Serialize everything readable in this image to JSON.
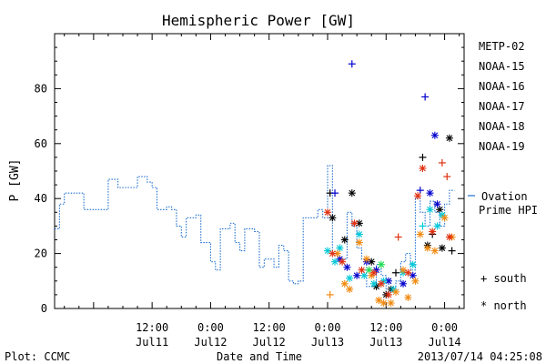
{
  "chart_data": {
    "type": "scatter",
    "title": "Hemispheric Power [GW]",
    "ylabel": "P [GW]",
    "xlabel": "Date and Time",
    "ylim": [
      0,
      100
    ],
    "xlim": [
      "2013-07-10 16:00",
      "2013-07-14 04:00"
    ],
    "yticks": [
      0,
      20,
      40,
      60,
      80
    ],
    "xticks": [
      {
        "time": "2013-07-11 12:00",
        "line1": "12:00",
        "line2": "Jul11"
      },
      {
        "time": "2013-07-12 00:00",
        "line1": "0:00",
        "line2": "Jul12"
      },
      {
        "time": "2013-07-12 12:00",
        "line1": "12:00",
        "line2": "Jul12"
      },
      {
        "time": "2013-07-13 00:00",
        "line1": "0:00",
        "line2": "Jul13"
      },
      {
        "time": "2013-07-13 12:00",
        "line1": "12:00",
        "line2": "Jul13"
      },
      {
        "time": "2013-07-14 00:00",
        "line1": "0:00",
        "line2": "Jul14"
      }
    ],
    "ovation": {
      "label_line1": "Ovation",
      "label_line2": "Prime HPI",
      "color": "#1f6fd0",
      "points": [
        [
          "2013-07-10 16:00",
          29
        ],
        [
          "2013-07-10 17:00",
          38
        ],
        [
          "2013-07-10 18:00",
          42
        ],
        [
          "2013-07-10 21:00",
          42
        ],
        [
          "2013-07-10 22:00",
          36
        ],
        [
          "2013-07-11 02:00",
          36
        ],
        [
          "2013-07-11 03:00",
          47
        ],
        [
          "2013-07-11 05:00",
          44
        ],
        [
          "2013-07-11 08:00",
          44
        ],
        [
          "2013-07-11 09:00",
          48
        ],
        [
          "2013-07-11 11:00",
          46
        ],
        [
          "2013-07-11 12:00",
          44
        ],
        [
          "2013-07-11 13:00",
          36
        ],
        [
          "2013-07-11 15:00",
          37
        ],
        [
          "2013-07-11 16:00",
          36
        ],
        [
          "2013-07-11 17:00",
          30
        ],
        [
          "2013-07-11 18:00",
          26
        ],
        [
          "2013-07-11 19:00",
          33
        ],
        [
          "2013-07-11 21:00",
          34
        ],
        [
          "2013-07-11 22:00",
          24
        ],
        [
          "2013-07-12 00:00",
          17
        ],
        [
          "2013-07-12 01:00",
          14
        ],
        [
          "2013-07-12 02:00",
          29
        ],
        [
          "2013-07-12 04:00",
          31
        ],
        [
          "2013-07-12 05:00",
          24
        ],
        [
          "2013-07-12 06:00",
          21
        ],
        [
          "2013-07-12 07:00",
          29
        ],
        [
          "2013-07-12 09:00",
          28
        ],
        [
          "2013-07-12 10:00",
          15
        ],
        [
          "2013-07-12 11:00",
          18
        ],
        [
          "2013-07-12 12:00",
          18
        ],
        [
          "2013-07-12 13:00",
          15
        ],
        [
          "2013-07-12 14:00",
          23
        ],
        [
          "2013-07-12 15:00",
          21
        ],
        [
          "2013-07-12 16:00",
          10
        ],
        [
          "2013-07-12 17:00",
          9
        ],
        [
          "2013-07-12 18:00",
          10
        ],
        [
          "2013-07-12 19:00",
          33
        ],
        [
          "2013-07-12 22:00",
          36
        ],
        [
          "2013-07-12 23:00",
          33
        ],
        [
          "2013-07-13 00:00",
          52
        ],
        [
          "2013-07-13 01:00",
          20
        ],
        [
          "2013-07-13 02:00",
          18
        ],
        [
          "2013-07-13 04:00",
          35
        ],
        [
          "2013-07-13 05:00",
          30
        ],
        [
          "2013-07-13 06:00",
          22
        ],
        [
          "2013-07-13 07:00",
          18
        ],
        [
          "2013-07-13 08:00",
          8
        ],
        [
          "2013-07-13 10:00",
          16
        ],
        [
          "2013-07-13 11:00",
          12
        ],
        [
          "2013-07-13 12:00",
          6
        ],
        [
          "2013-07-13 13:00",
          7
        ],
        [
          "2013-07-13 14:00",
          10
        ],
        [
          "2013-07-13 15:00",
          17
        ],
        [
          "2013-07-13 16:00",
          20
        ],
        [
          "2013-07-13 17:00",
          14
        ],
        [
          "2013-07-13 18:00",
          40
        ],
        [
          "2013-07-13 19:00",
          35
        ],
        [
          "2013-07-13 20:00",
          30
        ],
        [
          "2013-07-13 21:00",
          39
        ],
        [
          "2013-07-13 22:00",
          35
        ],
        [
          "2013-07-13 23:00",
          30
        ],
        [
          "2013-07-14 00:00",
          38
        ],
        [
          "2013-07-14 01:00",
          43
        ],
        [
          "2013-07-14 02:00",
          43
        ]
      ]
    },
    "series": [
      {
        "name": "METP-02",
        "color": "#000000",
        "points": [
          [
            "2013-07-13 00:30",
            42,
            "south"
          ],
          [
            "2013-07-13 01:00",
            33,
            "north"
          ],
          [
            "2013-07-13 03:30",
            25,
            "north"
          ],
          [
            "2013-07-13 05:00",
            42,
            "north"
          ],
          [
            "2013-07-13 06:30",
            31,
            "north"
          ],
          [
            "2013-07-13 09:00",
            17,
            "north"
          ],
          [
            "2013-07-13 10:00",
            8,
            "north"
          ],
          [
            "2013-07-13 12:00",
            5,
            "north"
          ],
          [
            "2013-07-13 13:00",
            7,
            "north"
          ],
          [
            "2013-07-13 14:00",
            13,
            "south"
          ],
          [
            "2013-07-13 19:30",
            55,
            "south"
          ],
          [
            "2013-07-13 20:30",
            23,
            "north"
          ],
          [
            "2013-07-13 21:30",
            27,
            "south"
          ],
          [
            "2013-07-13 23:00",
            36,
            "north"
          ],
          [
            "2013-07-13 23:30",
            22,
            "north"
          ],
          [
            "2013-07-14 01:00",
            62,
            "north"
          ],
          [
            "2013-07-14 01:30",
            21,
            "south"
          ]
        ]
      },
      {
        "name": "NOAA-15",
        "color": "#0000cc",
        "points": [
          [
            "2013-07-13 01:30",
            42,
            "south"
          ],
          [
            "2013-07-13 05:00",
            89,
            "south"
          ],
          [
            "2013-07-13 02:30",
            18,
            "north"
          ],
          [
            "2013-07-13 04:00",
            15,
            "north"
          ],
          [
            "2013-07-13 06:00",
            12,
            "north"
          ],
          [
            "2013-07-13 08:00",
            17,
            "north"
          ],
          [
            "2013-07-13 10:00",
            14,
            "north"
          ],
          [
            "2013-07-13 12:30",
            10,
            "north"
          ],
          [
            "2013-07-13 15:30",
            9,
            "north"
          ],
          [
            "2013-07-13 17:30",
            12,
            "north"
          ],
          [
            "2013-07-13 19:00",
            43,
            "south"
          ],
          [
            "2013-07-13 20:00",
            77,
            "south"
          ],
          [
            "2013-07-13 21:00",
            42,
            "north"
          ],
          [
            "2013-07-13 22:00",
            63,
            "north"
          ],
          [
            "2013-07-13 22:30",
            38,
            "north"
          ]
        ]
      },
      {
        "name": "NOAA-16",
        "color": "#00c8d8",
        "points": [
          [
            "2013-07-13 00:00",
            21,
            "north"
          ],
          [
            "2013-07-13 01:30",
            17,
            "north"
          ],
          [
            "2013-07-13 02:30",
            22,
            "north"
          ],
          [
            "2013-07-13 04:30",
            11,
            "north"
          ],
          [
            "2013-07-13 06:30",
            27,
            "north"
          ],
          [
            "2013-07-13 07:30",
            12,
            "north"
          ],
          [
            "2013-07-13 09:30",
            9,
            "north"
          ],
          [
            "2013-07-13 11:30",
            10,
            "north"
          ],
          [
            "2013-07-13 13:30",
            7,
            "north"
          ],
          [
            "2013-07-13 15:30",
            13,
            "north"
          ],
          [
            "2013-07-13 17:30",
            16,
            "north"
          ],
          [
            "2013-07-13 19:30",
            30,
            "south"
          ],
          [
            "2013-07-13 21:00",
            36,
            "north"
          ],
          [
            "2013-07-13 22:30",
            30,
            "north"
          ],
          [
            "2013-07-13 23:30",
            34,
            "north"
          ]
        ]
      },
      {
        "name": "NOAA-17",
        "color": "#22dd55",
        "points": [
          [
            "2013-07-13 08:30",
            14,
            "north"
          ],
          [
            "2013-07-13 11:00",
            16,
            "north"
          ]
        ]
      },
      {
        "name": "NOAA-18",
        "color": "#f08a10",
        "points": [
          [
            "2013-07-13 00:30",
            5,
            "south"
          ],
          [
            "2013-07-13 02:00",
            20,
            "north"
          ],
          [
            "2013-07-13 03:30",
            9,
            "north"
          ],
          [
            "2013-07-13 04:30",
            7,
            "north"
          ],
          [
            "2013-07-13 06:30",
            24,
            "north"
          ],
          [
            "2013-07-13 08:00",
            18,
            "north"
          ],
          [
            "2013-07-13 09:00",
            12,
            "north"
          ],
          [
            "2013-07-13 10:30",
            3,
            "north"
          ],
          [
            "2013-07-13 11:30",
            2,
            "north"
          ],
          [
            "2013-07-13 13:00",
            2,
            "north"
          ],
          [
            "2013-07-13 14:00",
            6,
            "north"
          ],
          [
            "2013-07-13 15:30",
            14,
            "north"
          ],
          [
            "2013-07-13 16:30",
            4,
            "north"
          ],
          [
            "2013-07-13 18:00",
            10,
            "north"
          ],
          [
            "2013-07-13 19:00",
            27,
            "north"
          ],
          [
            "2013-07-13 20:30",
            22,
            "north"
          ],
          [
            "2013-07-13 22:00",
            21,
            "north"
          ],
          [
            "2013-07-14 00:00",
            33,
            "north"
          ],
          [
            "2013-07-14 01:30",
            26,
            "north"
          ]
        ]
      },
      {
        "name": "NOAA-19",
        "color": "#e03010",
        "points": [
          [
            "2013-07-13 00:00",
            35,
            "north"
          ],
          [
            "2013-07-13 01:00",
            20,
            "north"
          ],
          [
            "2013-07-13 03:00",
            17,
            "north"
          ],
          [
            "2013-07-13 05:30",
            31,
            "north"
          ],
          [
            "2013-07-13 07:00",
            14,
            "north"
          ],
          [
            "2013-07-13 09:30",
            13,
            "north"
          ],
          [
            "2013-07-13 11:00",
            9,
            "north"
          ],
          [
            "2013-07-13 12:30",
            5,
            "north"
          ],
          [
            "2013-07-13 14:30",
            26,
            "south"
          ],
          [
            "2013-07-13 16:30",
            13,
            "north"
          ],
          [
            "2013-07-13 18:30",
            41,
            "north"
          ],
          [
            "2013-07-13 19:30",
            51,
            "north"
          ],
          [
            "2013-07-13 21:30",
            28,
            "north"
          ],
          [
            "2013-07-13 23:30",
            53,
            "south"
          ],
          [
            "2013-07-14 00:30",
            48,
            "south"
          ],
          [
            "2013-07-14 01:00",
            26,
            "north"
          ]
        ]
      }
    ],
    "marker_legend": [
      {
        "symbol": "+",
        "label": "south"
      },
      {
        "symbol": "*",
        "label": "north"
      }
    ]
  },
  "footer": {
    "left": "Plot: CCMC",
    "center": "Date and Time",
    "right": "2013/07/14 04:25:08"
  }
}
